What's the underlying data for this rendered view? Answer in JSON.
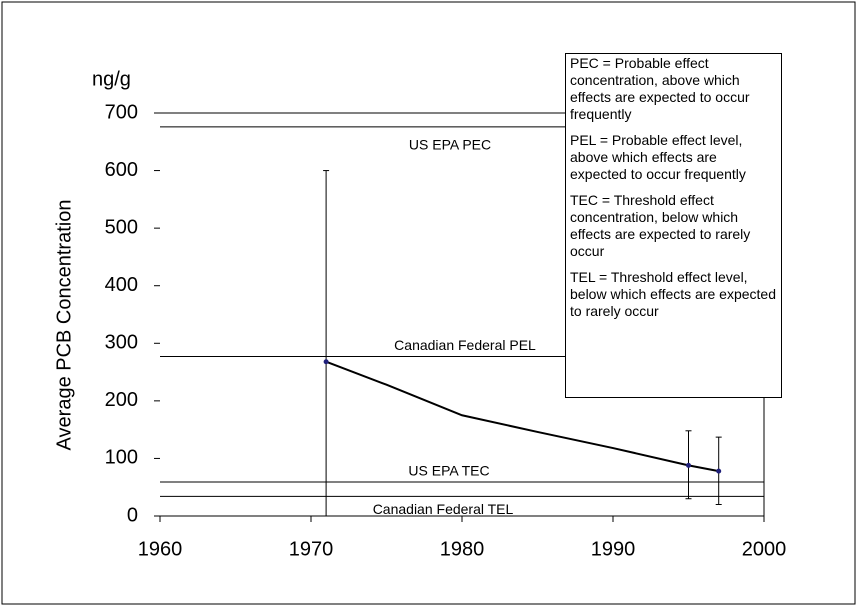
{
  "chart_data": {
    "type": "line",
    "y_unit": "ng/g",
    "y_label": "Average PCB Concentration",
    "xlim": [
      1960,
      2000
    ],
    "xticks": [
      1960,
      1970,
      1980,
      1990,
      2000
    ],
    "ylim": [
      0,
      700
    ],
    "yticks": [
      0,
      100,
      200,
      300,
      400,
      500,
      600,
      700
    ],
    "series": [
      {
        "color": "#000000",
        "x": [
          1971,
          1975,
          1980,
          1985,
          1990,
          1995,
          1997
        ],
        "values": [
          268,
          228,
          175,
          146,
          118,
          88,
          78
        ]
      }
    ],
    "points": {
      "color": "#1f1f7a",
      "x": [
        1971,
        1995,
        1997
      ],
      "values": [
        268,
        88,
        78
      ],
      "error_low": [
        0,
        30,
        20
      ],
      "error_high": [
        600,
        148,
        137
      ]
    },
    "reference_lines": [
      {
        "name": "US EPA PEC",
        "value": 676
      },
      {
        "name": "Canadian Federal PEL",
        "value": 277
      },
      {
        "name": "US EPA TEC",
        "value": 59
      },
      {
        "name": "Canadian Federal TEL",
        "value": 34
      }
    ],
    "notes": [
      "PEC = Probable effect concentration, above which effects are expected to occur frequently",
      "PEL = Probable effect level, above which effects are expected to occur frequently",
      "TEC = Threshold effect concentration, below which effects are expected to rarely occur",
      "TEL = Threshold effect level, below which effects are expected to rarely occur"
    ]
  }
}
